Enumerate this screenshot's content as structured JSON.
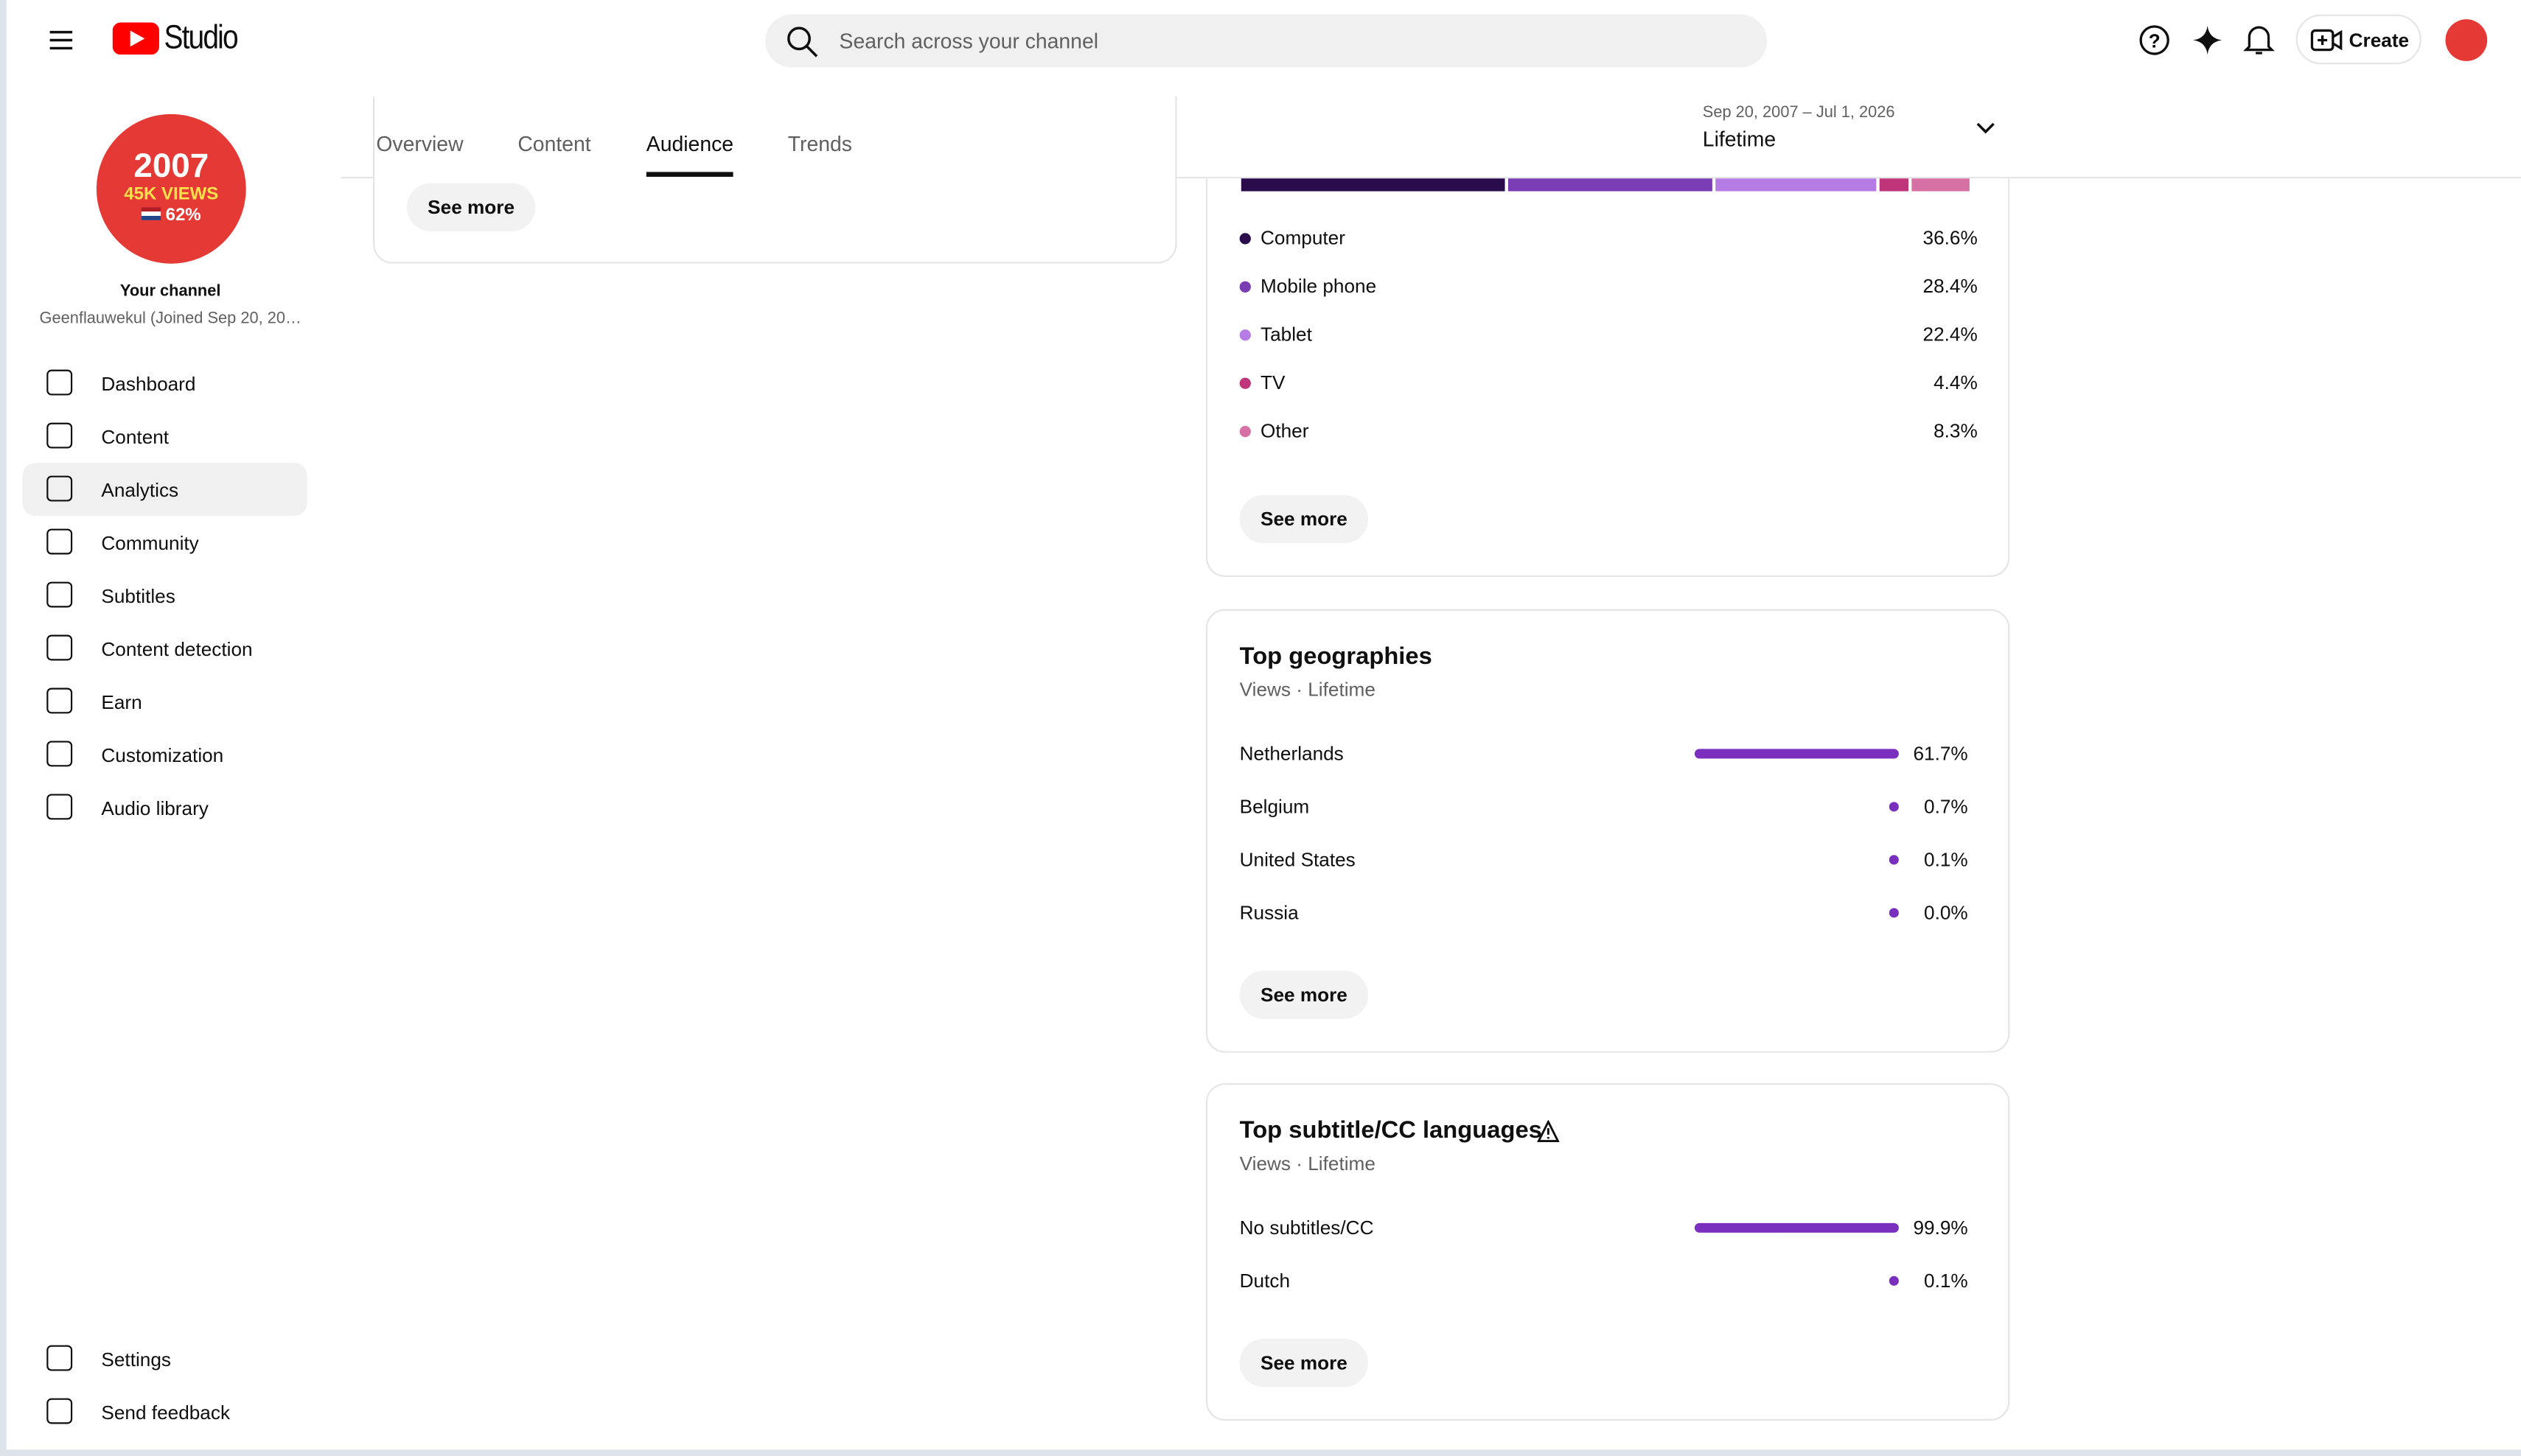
{
  "header": {
    "logo": "Studio",
    "search_placeholder": "Search across your channel",
    "create": "Create"
  },
  "sidebar": {
    "avatar": {
      "year": "2007",
      "views": "45K VIEWS",
      "pct": "62%"
    },
    "channel_title": "Your channel",
    "channel_name": "Geenflauwekul (Joined Sep 20, 20…",
    "nav": [
      "Dashboard",
      "Content",
      "Analytics",
      "Community",
      "Subtitles",
      "Content detection",
      "Earn",
      "Customization",
      "Audio library"
    ],
    "active_nav": 2,
    "bottom": [
      "Settings",
      "Send feedback"
    ]
  },
  "tabs": {
    "items": [
      "Overview",
      "Content",
      "Audience",
      "Trends"
    ],
    "active": 2
  },
  "date_range": {
    "range": "Sep 20, 2007 – Jul 1, 2026",
    "label": "Lifetime"
  },
  "see_more": "See more",
  "devices": {
    "rows": [
      {
        "label": "Computer",
        "value": "36.6%",
        "color": "#2a0b4c"
      },
      {
        "label": "Mobile phone",
        "value": "28.4%",
        "color": "#7a3db4"
      },
      {
        "label": "Tablet",
        "value": "22.4%",
        "color": "#b47ce4"
      },
      {
        "label": "TV",
        "value": "4.4%",
        "color": "#c0357a"
      },
      {
        "label": "Other",
        "value": "8.3%",
        "color": "#d770a4"
      }
    ]
  },
  "geographies": {
    "title": "Top geographies",
    "subtitle": "Views · Lifetime",
    "rows": [
      {
        "label": "Netherlands",
        "value": "61.7%"
      },
      {
        "label": "Belgium",
        "value": "0.7%"
      },
      {
        "label": "United States",
        "value": "0.1%"
      },
      {
        "label": "Russia",
        "value": "0.0%"
      }
    ]
  },
  "languages": {
    "title": "Top subtitle/CC languages",
    "subtitle": "Views · Lifetime",
    "rows": [
      {
        "label": "No subtitles/CC",
        "value": "99.9%"
      },
      {
        "label": "Dutch",
        "value": "0.1%"
      }
    ]
  }
}
